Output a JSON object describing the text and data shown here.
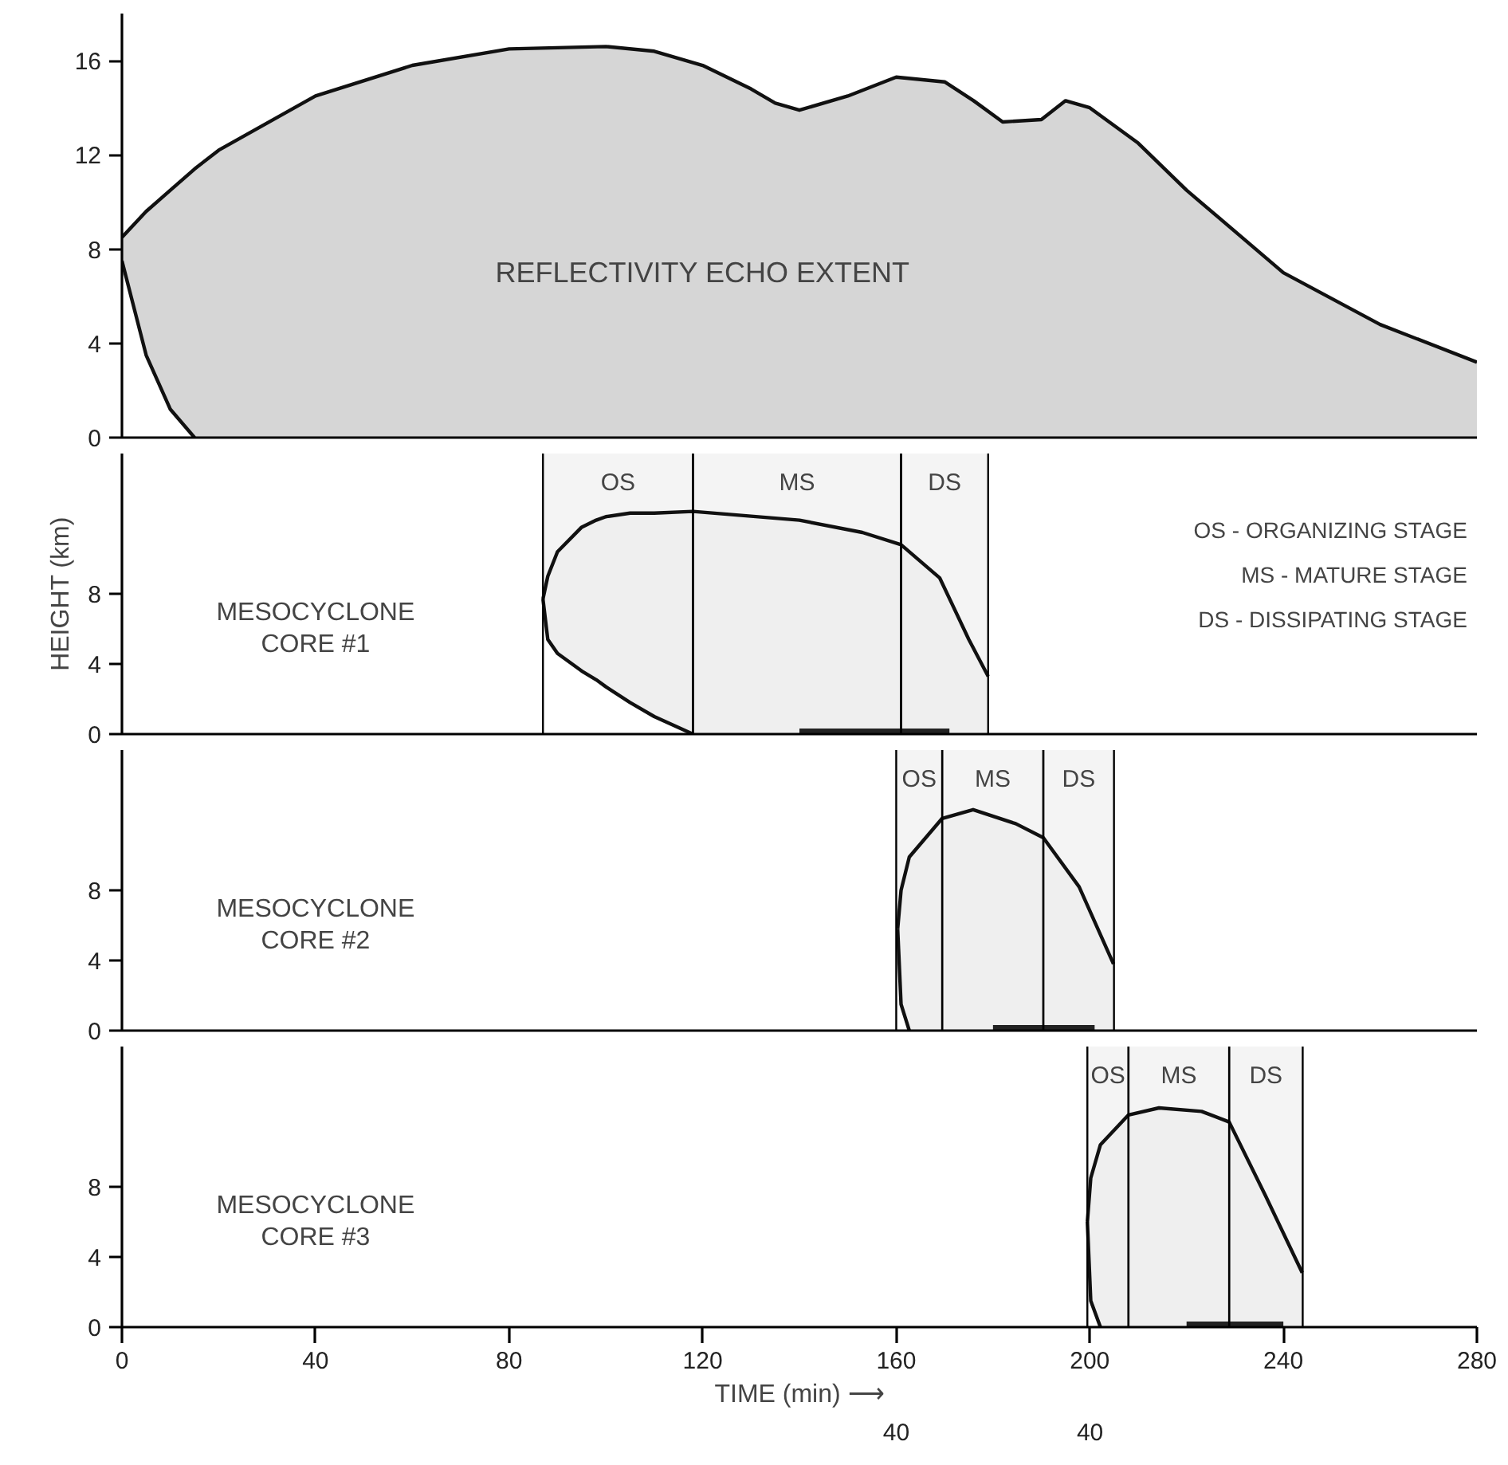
{
  "chart_data": [
    {
      "type": "area",
      "xlim": [
        0,
        280
      ],
      "ylim": [
        0,
        18
      ],
      "yticks": [
        0,
        4,
        8,
        12,
        16
      ],
      "tick_labels": "y",
      "series": [
        {
          "color": "#d6d6d6",
          "x": [
            0,
            5,
            10,
            15,
            20,
            40,
            60,
            80,
            100,
            110,
            120,
            130,
            135,
            140,
            150,
            160,
            170,
            176,
            182,
            190,
            195,
            200,
            210,
            220,
            240,
            260,
            280
          ],
          "values": [
            8.5,
            9.6,
            10.5,
            11.4,
            12.2,
            14.5,
            15.8,
            16.5,
            16.6,
            16.4,
            15.8,
            14.8,
            14.2,
            13.9,
            14.5,
            15.3,
            15.1,
            14.3,
            13.4,
            13.5,
            14.3,
            14.0,
            12.5,
            10.5,
            7.0,
            4.8,
            3.2
          ]
        },
        {
          "color": "#ffffff",
          "x": [
            0,
            5,
            10,
            15
          ],
          "values": [
            7.5,
            3.5,
            1.2,
            0
          ]
        }
      ],
      "annotations": [
        "REFLECTIVITY ECHO EXTENT"
      ]
    },
    {
      "type": "area",
      "xlim": [
        0,
        280
      ],
      "ylim": [
        0,
        16
      ],
      "yticks": [
        0,
        4,
        8
      ],
      "tick_labels": "y",
      "ylabel": "HEIGHT (km)",
      "series": [
        {
          "color": "#efefef",
          "x": [
            87,
            88,
            90,
            95,
            98,
            100,
            105,
            110,
            118,
            140,
            153,
            161,
            169,
            175,
            179
          ],
          "values": [
            7.7,
            9.0,
            10.4,
            11.8,
            12.2,
            12.4,
            12.6,
            12.6,
            12.7,
            12.2,
            11.5,
            10.8,
            8.9,
            5.4,
            3.3
          ]
        },
        {
          "color": "#ffffff",
          "x": [
            87,
            88,
            90,
            95,
            98,
            100,
            105,
            110,
            118
          ],
          "values": [
            7.7,
            5.4,
            4.6,
            3.6,
            3.1,
            2.7,
            1.8,
            1.0,
            0
          ]
        },
        {
          "type": "line",
          "color": "#222222",
          "x": [
            140,
            171
          ],
          "values": [
            0,
            0
          ]
        }
      ],
      "bands": [
        {
          "axis": "x",
          "from": 87,
          "to": 118,
          "label": "OS",
          "color": "#f4f4f4"
        },
        {
          "axis": "x",
          "from": 118,
          "to": 161,
          "label": "MS",
          "color": "#f4f4f4"
        },
        {
          "axis": "x",
          "from": 161,
          "to": 179,
          "label": "DS",
          "color": "#f4f4f4"
        }
      ],
      "annotations": [
        "MESOCYCLONE\nCORE #1",
        "OS - ORGANIZING STAGE",
        "MS - MATURE STAGE",
        "DS - DISSIPATING STAGE"
      ]
    },
    {
      "type": "area",
      "xlim": [
        0,
        280
      ],
      "ylim": [
        0,
        16
      ],
      "yticks": [
        0,
        4,
        8
      ],
      "tick_labels": "y",
      "series": [
        {
          "color": "#efefef",
          "x": [
            160.3,
            161,
            162.7,
            169.5,
            175.9,
            184.7,
            190.4,
            197.8,
            204.9
          ],
          "values": [
            5.8,
            8.0,
            9.9,
            12.1,
            12.6,
            11.8,
            11.0,
            8.2,
            3.8
          ]
        },
        {
          "color": "#ffffff",
          "x": [
            160.3,
            161,
            162.7
          ],
          "values": [
            5.8,
            1.5,
            0
          ]
        },
        {
          "type": "line",
          "color": "#222222",
          "x": [
            180,
            201
          ],
          "values": [
            0,
            0
          ]
        }
      ],
      "bands": [
        {
          "axis": "x",
          "from": 160,
          "to": 169.5,
          "label": "OS",
          "color": "#f4f4f4"
        },
        {
          "axis": "x",
          "from": 169.5,
          "to": 190.4,
          "label": "MS",
          "color": "#f4f4f4"
        },
        {
          "axis": "x",
          "from": 190.4,
          "to": 205,
          "label": "DS",
          "color": "#f4f4f4"
        }
      ],
      "annotations": [
        "MESOCYCLONE\nCORE #2"
      ]
    },
    {
      "type": "area",
      "xlim": [
        0,
        280
      ],
      "ylim": [
        0,
        16
      ],
      "yticks": [
        0,
        4,
        8
      ],
      "xticks": [
        0,
        40,
        80,
        120,
        160,
        200,
        240,
        280
      ],
      "xlabel": "TIME (min) ⟶",
      "series": [
        {
          "color": "#efefef",
          "x": [
            199.5,
            200.2,
            202.2,
            208,
            214.3,
            223.1,
            228.8,
            236.3,
            243.9
          ],
          "values": [
            6.0,
            8.5,
            10.4,
            12.1,
            12.5,
            12.3,
            11.7,
            7.5,
            3.1
          ]
        },
        {
          "color": "#ffffff",
          "x": [
            199.5,
            200.2,
            202.2
          ],
          "values": [
            6.0,
            1.5,
            0
          ]
        },
        {
          "type": "line",
          "color": "#222222",
          "x": [
            220,
            240
          ],
          "values": [
            0,
            0
          ]
        }
      ],
      "bands": [
        {
          "axis": "x",
          "from": 199.5,
          "to": 208,
          "label": "OS",
          "color": "#f4f4f4"
        },
        {
          "axis": "x",
          "from": 208,
          "to": 228.8,
          "label": "MS",
          "color": "#f4f4f4"
        },
        {
          "axis": "x",
          "from": 228.8,
          "to": 244,
          "label": "DS",
          "color": "#f4f4f4"
        }
      ],
      "annotations": [
        "MESOCYCLONE\nCORE #3",
        "40",
        "40"
      ]
    }
  ]
}
